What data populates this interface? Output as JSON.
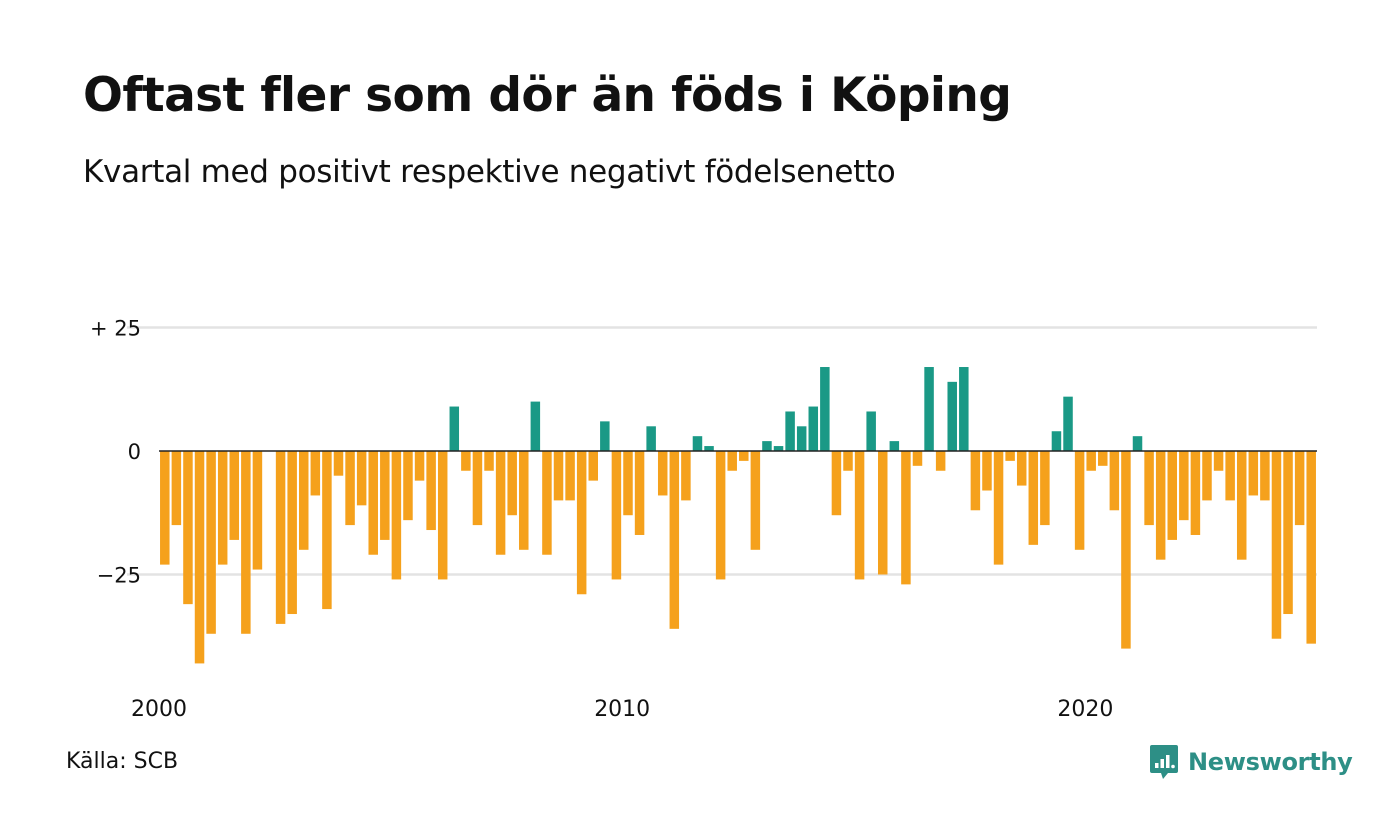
{
  "header": {
    "title": "Oftast fler som dör än föds i Köping",
    "subtitle": "Kvartal med positivt respektive negativt födelsenetto"
  },
  "footer": {
    "source": "Källa: SCB",
    "brand": "Newsworthy"
  },
  "colors": {
    "positive": "#1a9986",
    "negative": "#f5a11c",
    "grid": "#e3e3e3",
    "zero_line": "#222222",
    "brand": "#2d8f86"
  },
  "chart_data": {
    "type": "bar",
    "x_start_year": 2000,
    "periods_per_year": 4,
    "values": [
      -23,
      -15,
      -31,
      -43,
      -37,
      -23,
      -18,
      -37,
      -24,
      0,
      -35,
      -33,
      -20,
      -9,
      -32,
      -5,
      -15,
      -11,
      -21,
      -18,
      -26,
      -14,
      -6,
      -16,
      -26,
      9,
      -4,
      -15,
      -4,
      -21,
      -13,
      -20,
      10,
      -21,
      -10,
      -10,
      -29,
      -6,
      6,
      -26,
      -13,
      -17,
      5,
      -9,
      -36,
      -10,
      3,
      1,
      -26,
      -4,
      -2,
      -20,
      2,
      1,
      8,
      5,
      9,
      17,
      -13,
      -4,
      -26,
      8,
      -25,
      2,
      -27,
      -3,
      17,
      -4,
      14,
      17,
      -12,
      -8,
      -23,
      -2,
      -7,
      -19,
      -15,
      4,
      11,
      -20,
      -4,
      -3,
      -12,
      -40,
      3,
      -15,
      -22,
      -18,
      -14,
      -17,
      -10,
      -4,
      -10,
      -22,
      -9,
      -10,
      -38,
      -33,
      -15,
      -39
    ],
    "ylim": [
      -45,
      27
    ],
    "y_ticks": [
      {
        "value": 25,
        "label": "+ 25"
      },
      {
        "value": 0,
        "label": "0"
      },
      {
        "value": -25,
        "label": "−25"
      }
    ],
    "x_ticks": [
      {
        "year": 2000,
        "label": "2000"
      },
      {
        "year": 2010,
        "label": "2010"
      },
      {
        "year": 2020,
        "label": "2020"
      }
    ],
    "grid": true,
    "legend": false
  }
}
